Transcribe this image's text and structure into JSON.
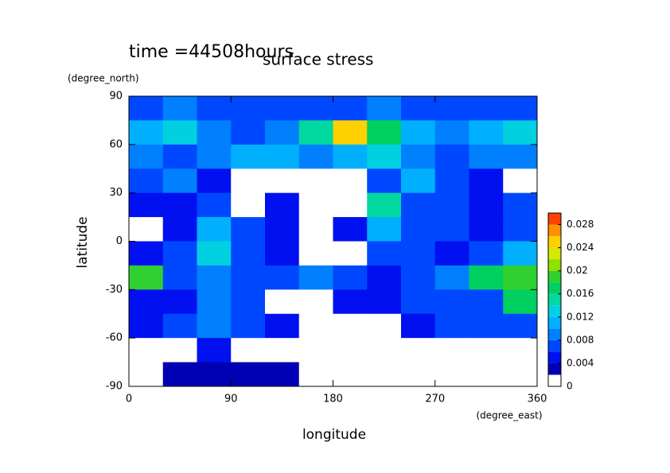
{
  "chart_data": {
    "type": "contour",
    "title": "surface stress",
    "subtitle": "time =44508hours",
    "x_label": "longitude",
    "x_unit": "(degree_east)",
    "y_label": "latitude",
    "y_unit": "(degree_north)",
    "xlim": [
      0,
      360
    ],
    "ylim": [
      -90,
      90
    ],
    "xticks": [
      0,
      90,
      180,
      270,
      360
    ],
    "yticks": [
      -90,
      -60,
      -30,
      0,
      30,
      60,
      90
    ],
    "x": [
      15,
      45,
      75,
      105,
      135,
      165,
      195,
      225,
      255,
      285,
      315,
      345
    ],
    "y": [
      82.5,
      67.5,
      52.5,
      37.5,
      22.5,
      7.5,
      -7.5,
      -22.5,
      -37.5,
      -52.5,
      -67.5,
      -82.5
    ],
    "z": [
      [
        0.006,
        0.008,
        0.006,
        0.006,
        0.006,
        0.006,
        0.006,
        0.008,
        0.006,
        0.006,
        0.006,
        0.006
      ],
      [
        0.01,
        0.012,
        0.008,
        0.006,
        0.008,
        0.014,
        0.024,
        0.016,
        0.01,
        0.008,
        0.01,
        0.012
      ],
      [
        0.008,
        0.006,
        0.008,
        0.01,
        0.01,
        0.008,
        0.01,
        0.012,
        0.008,
        0.006,
        0.008,
        0.008
      ],
      [
        0.006,
        0.008,
        0.004,
        0,
        0,
        0,
        0,
        0.006,
        0.01,
        0.006,
        0.004,
        0
      ],
      [
        0.004,
        0.004,
        0.006,
        0,
        0.004,
        0,
        0,
        0.014,
        0.006,
        0.006,
        0.004,
        0.006
      ],
      [
        0,
        0.004,
        0.01,
        0.006,
        0.004,
        0,
        0.004,
        0.01,
        0.006,
        0.006,
        0.004,
        0.006
      ],
      [
        0.004,
        0.006,
        0.012,
        0.006,
        0.004,
        0,
        0,
        0.006,
        0.006,
        0.004,
        0.006,
        0.01
      ],
      [
        0.018,
        0.006,
        0.008,
        0.006,
        0.006,
        0.008,
        0.006,
        0.004,
        0.006,
        0.008,
        0.016,
        0.018
      ],
      [
        0.004,
        0.004,
        0.008,
        0.006,
        0,
        0,
        0.004,
        0.004,
        0.006,
        0.006,
        0.006,
        0.016
      ],
      [
        0.004,
        0.006,
        0.008,
        0.006,
        0.004,
        0,
        0,
        0,
        0.004,
        0.006,
        0.006,
        0.006
      ],
      [
        0,
        0,
        0.004,
        0,
        0,
        0,
        0,
        0,
        0,
        0,
        0,
        0
      ],
      [
        0,
        0.002,
        0.002,
        0.002,
        0.002,
        0,
        0,
        0,
        0,
        0,
        0,
        0
      ]
    ],
    "colorlim": [
      0,
      0.03
    ],
    "colorticks": [
      0,
      0.004,
      0.008,
      0.012,
      0.016,
      0.02,
      0.024,
      0.028
    ],
    "level_colors": [
      "#ffffff",
      "#0000b4",
      "#0010f0",
      "#0048ff",
      "#0080ff",
      "#00b0ff",
      "#00d0e0",
      "#00d8a0",
      "#00d060",
      "#30d030",
      "#90e000",
      "#d8e800",
      "#ffd000",
      "#ff9000",
      "#ff4000"
    ]
  }
}
